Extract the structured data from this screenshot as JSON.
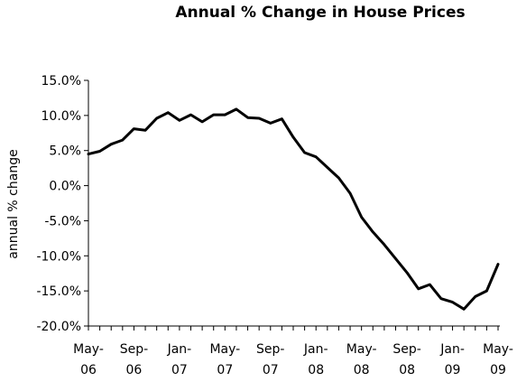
{
  "chart_data": {
    "type": "line",
    "title": "Annual % Change in House Prices",
    "xlabel": "",
    "ylabel": "annual % change",
    "ylim": [
      -20.0,
      15.0
    ],
    "yticks": [
      "15.0%",
      "10.0%",
      "5.0%",
      "0.0%",
      "-5.0%",
      "-10.0%",
      "-15.0%",
      "-20.0%"
    ],
    "ytick_values": [
      15,
      10,
      5,
      0,
      -5,
      -10,
      -15,
      -20
    ],
    "xtick_labels": [
      [
        "May-",
        "06"
      ],
      [
        "Sep-",
        "06"
      ],
      [
        "Jan-",
        "07"
      ],
      [
        "May-",
        "07"
      ],
      [
        "Sep-",
        "07"
      ],
      [
        "Jan-",
        "08"
      ],
      [
        "May-",
        "08"
      ],
      [
        "Sep-",
        "08"
      ],
      [
        "Jan-",
        "09"
      ],
      [
        "May-",
        "09"
      ]
    ],
    "grid": false,
    "legend": "none",
    "line_color": "#000000",
    "x": [
      "May-06",
      "Jun-06",
      "Jul-06",
      "Aug-06",
      "Sep-06",
      "Oct-06",
      "Nov-06",
      "Dec-06",
      "Jan-07",
      "Feb-07",
      "Mar-07",
      "Apr-07",
      "May-07",
      "Jun-07",
      "Jul-07",
      "Aug-07",
      "Sep-07",
      "Oct-07",
      "Nov-07",
      "Dec-07",
      "Jan-08",
      "Feb-08",
      "Mar-08",
      "Apr-08",
      "May-08",
      "Jun-08",
      "Jul-08",
      "Aug-08",
      "Sep-08",
      "Oct-08",
      "Nov-08",
      "Dec-08",
      "Jan-09",
      "Feb-09",
      "Mar-09",
      "Apr-09",
      "May-09"
    ],
    "values": [
      4.5,
      4.9,
      5.9,
      6.5,
      8.1,
      7.9,
      9.6,
      10.4,
      9.3,
      10.1,
      9.1,
      10.1,
      10.1,
      10.9,
      9.7,
      9.6,
      8.9,
      9.5,
      6.9,
      4.7,
      4.1,
      2.6,
      1.1,
      -1.1,
      -4.5,
      -6.6,
      -8.4,
      -10.4,
      -12.4,
      -14.7,
      -14.1,
      -16.1,
      -16.6,
      -17.6,
      -15.8,
      -15.0,
      -11.2
    ]
  }
}
